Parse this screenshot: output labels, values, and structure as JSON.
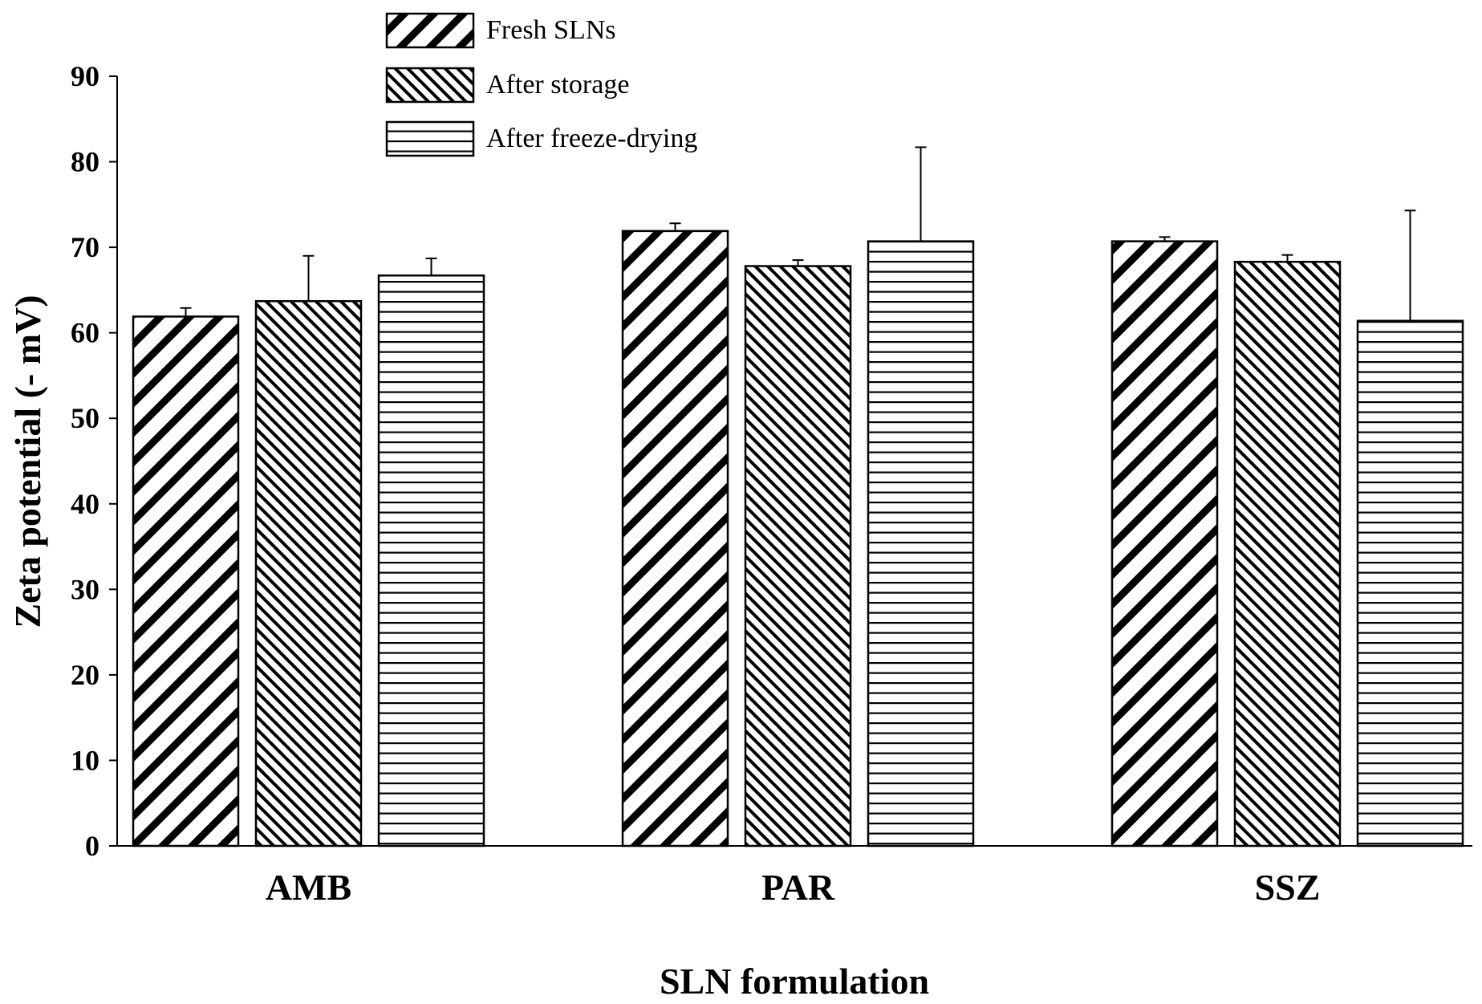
{
  "chart_data": {
    "type": "bar",
    "title": "",
    "xlabel": "SLN formulation",
    "ylabel": "Zeta potential (- mV)",
    "ylim": [
      0,
      90
    ],
    "yticks": [
      0,
      10,
      20,
      30,
      40,
      50,
      60,
      70,
      80,
      90
    ],
    "grid": false,
    "legend_position": "top-center",
    "categories": [
      "AMB",
      "PAR",
      "SSZ"
    ],
    "series": [
      {
        "name": "Fresh SLNs",
        "pattern": "diagonal-wide",
        "values": [
          61.9,
          71.9,
          70.7
        ],
        "errors": [
          1.0,
          0.9,
          0.5
        ]
      },
      {
        "name": "After storage",
        "pattern": "diagonal-dense",
        "values": [
          63.7,
          67.8,
          68.3
        ],
        "errors": [
          5.3,
          0.7,
          0.8
        ]
      },
      {
        "name": "After freeze-drying",
        "pattern": "horizontal",
        "values": [
          66.7,
          70.7,
          61.4
        ],
        "errors": [
          2.0,
          11.0,
          12.9
        ]
      }
    ]
  }
}
